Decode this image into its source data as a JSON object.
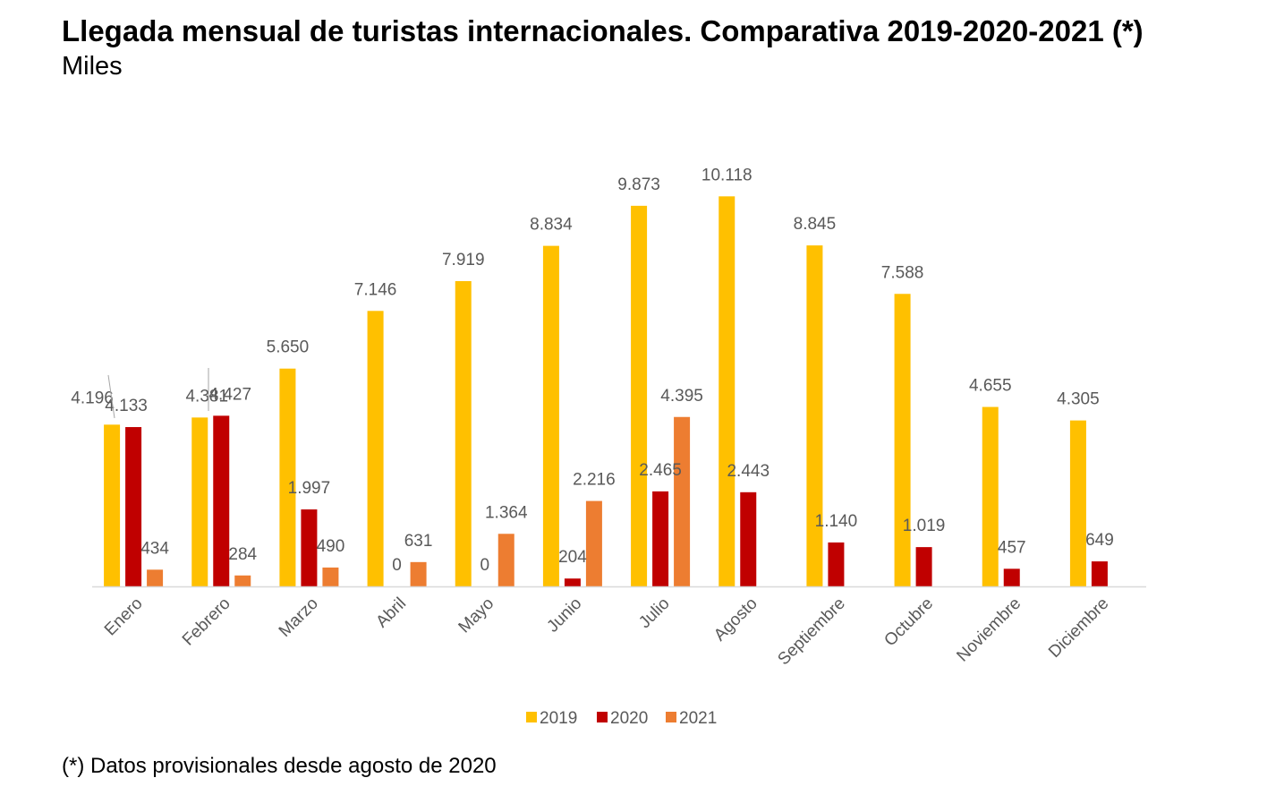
{
  "title": "Llegada mensual de turistas internacionales. Comparativa 2019-2020-2021 (*)",
  "subtitle": "Miles",
  "footnote": "(*) Datos provisionales desde agosto de 2020",
  "colors": {
    "2019": "#FFC000",
    "2020": "#C00000",
    "2021": "#ED7D31",
    "axis": "#d9d9d9",
    "label": "#595959"
  },
  "chart_data": {
    "type": "bar",
    "categories": [
      "Enero",
      "Febrero",
      "Marzo",
      "Abril",
      "Mayo",
      "Junio",
      "Julio",
      "Agosto",
      "Septiembre",
      "Octubre",
      "Noviembre",
      "Diciembre"
    ],
    "series": [
      {
        "name": "2019",
        "values": [
          4196,
          4381,
          5650,
          7146,
          7919,
          8834,
          9873,
          10118,
          8845,
          7588,
          4655,
          4305
        ],
        "labels": [
          "4.196",
          "4.381",
          "5.650",
          "7.146",
          "7.919",
          "8.834",
          "9.873",
          "10.118",
          "8.845",
          "7.588",
          "4.655",
          "4.305"
        ]
      },
      {
        "name": "2020",
        "values": [
          4133,
          4427,
          1997,
          0,
          0,
          204,
          2465,
          2443,
          1140,
          1019,
          457,
          649
        ],
        "labels": [
          "4.133",
          "4.427",
          "1.997",
          "0",
          "0",
          "204",
          "2.465",
          "2.443",
          "1.140",
          "1.019",
          "457",
          "649"
        ]
      },
      {
        "name": "2021",
        "values": [
          434,
          284,
          490,
          631,
          1364,
          2216,
          4395,
          null,
          null,
          null,
          null,
          null
        ],
        "labels": [
          "434",
          "284",
          "490",
          "631",
          "1.364",
          "2.216",
          "4.395",
          null,
          null,
          null,
          null,
          null
        ]
      }
    ],
    "ylim": [
      0,
      10118
    ],
    "legend_position": "bottom",
    "grid": false
  }
}
